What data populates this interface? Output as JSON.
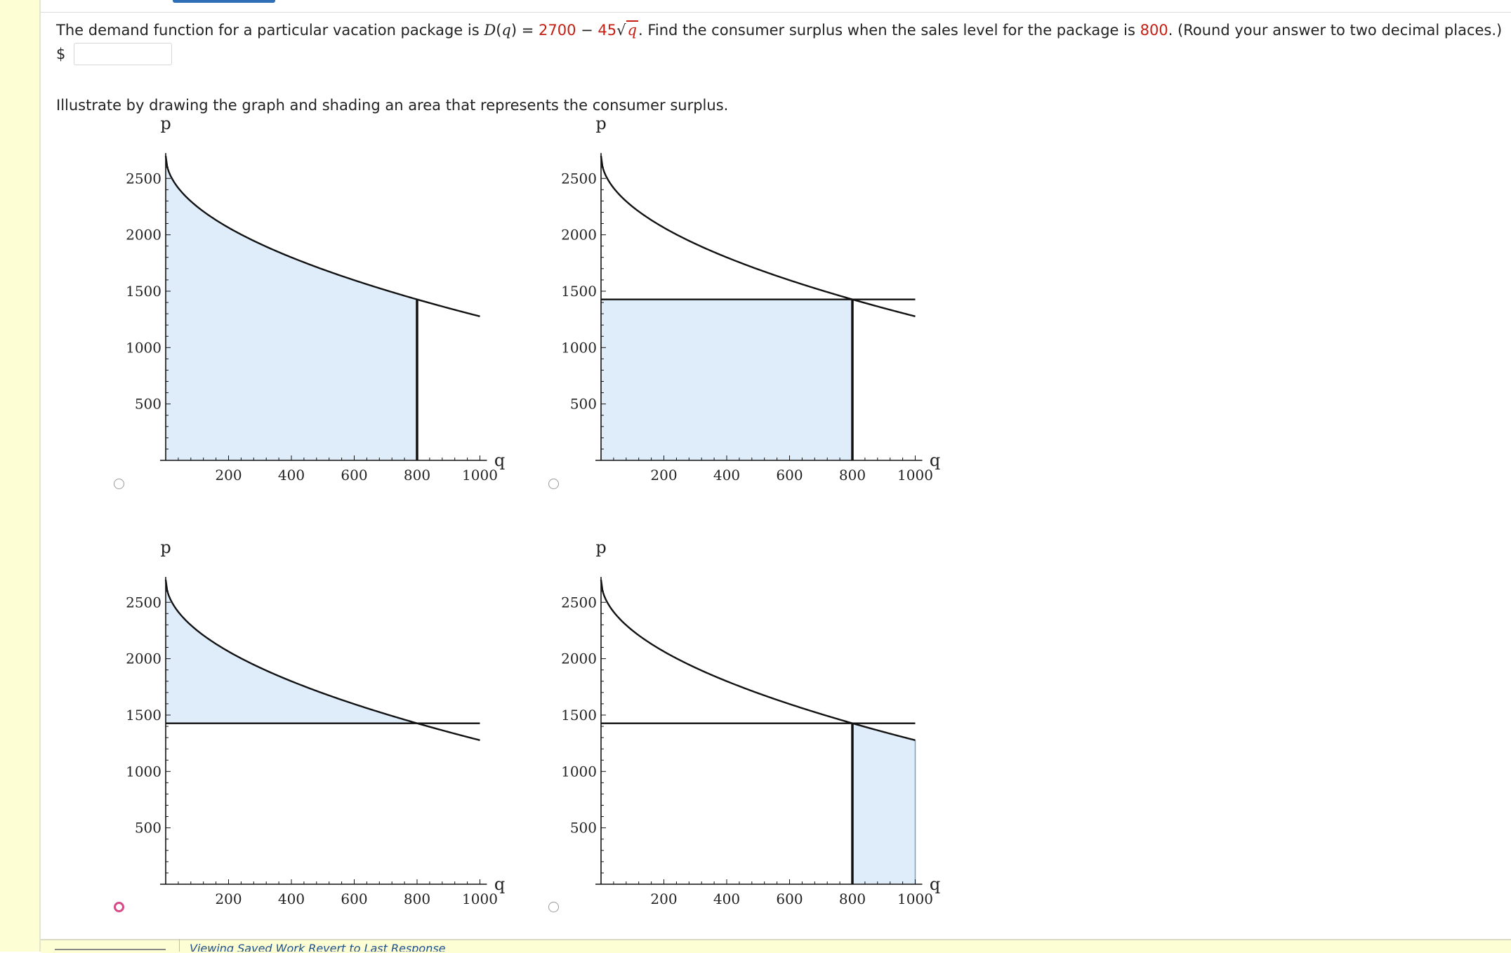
{
  "question": {
    "prefix": "The demand function for a particular vacation package is ",
    "fn_name": "D",
    "fn_arg": "q",
    "equals": " = ",
    "constant": "2700",
    "minus": " − ",
    "coefficient": "45",
    "sqrt_arg": "q",
    "middle": ". Find the consumer surplus when the sales level for the package is ",
    "sales_level": "800",
    "suffix": ". (Round your answer to two decimal places.)"
  },
  "answer": {
    "currency": "$",
    "value": ""
  },
  "illustrate_text": "Illustrate by drawing the graph and shading an area that represents the consumer surplus.",
  "colors": {
    "shade": "#dfedfb",
    "curve": "#111111",
    "accent_red": "#c41d11",
    "radio_selected": "#d64a86"
  },
  "options": [
    {
      "id": "a",
      "selected": false,
      "shading": "under-curve-to-800"
    },
    {
      "id": "b",
      "selected": false,
      "shading": "rectangle-below-price"
    },
    {
      "id": "c",
      "selected": true,
      "shading": "between-curve-and-price"
    },
    {
      "id": "d",
      "selected": false,
      "shading": "under-curve-800-to-1000"
    }
  ],
  "chart_data": {
    "type": "area",
    "x_label": "q",
    "y_label": "p",
    "x_ticks": [
      "200",
      "400",
      "600",
      "800",
      "1000"
    ],
    "y_ticks": [
      "500",
      "1000",
      "1500",
      "2000",
      "2500"
    ],
    "xlim": [
      0,
      1000
    ],
    "ylim": [
      0,
      2700
    ],
    "demand": {
      "constant": 2700,
      "coefficient": 45,
      "q_max": 1000
    },
    "sales_level": 800,
    "price_level": 1427.2
  },
  "footer": {
    "saved_text": "Viewing Saved Work Revert to Last Response"
  }
}
